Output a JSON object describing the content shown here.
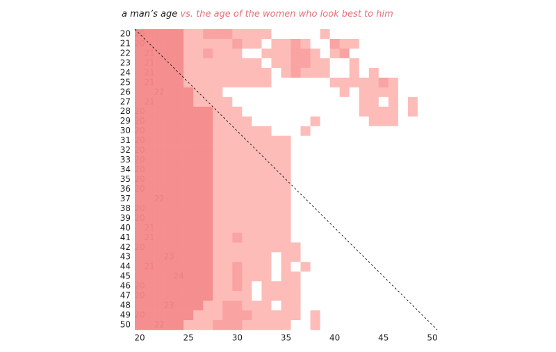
{
  "chart_data": {
    "type": "heatmap",
    "title": "a man’s age",
    "subtitle": "vs. the age of the women who look best to him",
    "title_color": "#222222",
    "subtitle_color": "#e8707a",
    "label_color": "#ee7f7f",
    "colors": [
      "#ffffff",
      "#fdbcb8",
      "#f9a3a3",
      "#f58f8f"
    ],
    "xlim": [
      19.5,
      50.5
    ],
    "ylim": [
      19.5,
      50.5
    ],
    "xticks": [
      20,
      25,
      30,
      35,
      40,
      45,
      50
    ],
    "x": [
      20,
      21,
      22,
      23,
      24,
      25,
      26,
      27,
      28,
      29,
      30,
      31,
      32,
      33,
      34,
      35,
      36,
      37,
      38,
      39,
      40,
      41,
      42,
      43,
      44,
      45,
      46,
      47,
      48,
      49,
      50
    ],
    "yticks": [
      20,
      21,
      22,
      23,
      24,
      25,
      26,
      27,
      28,
      29,
      30,
      31,
      32,
      33,
      34,
      35,
      36,
      37,
      38,
      39,
      40,
      41,
      42,
      43,
      44,
      45,
      46,
      47,
      48,
      49,
      50
    ],
    "values": [
      20,
      20,
      21,
      21,
      21,
      21,
      22,
      21,
      20,
      20,
      20,
      20,
      20,
      20,
      20,
      20,
      20,
      22,
      20,
      20,
      21,
      21,
      20,
      23,
      21,
      24,
      20,
      20,
      23,
      20,
      22
    ],
    "levels": [
      [
        3,
        3,
        3,
        3,
        3,
        1,
        1,
        2,
        2,
        2,
        1,
        1,
        1,
        1,
        0,
        0,
        0,
        0,
        0,
        1,
        0,
        0,
        0,
        0,
        0,
        0,
        0,
        0,
        0,
        0,
        0
      ],
      [
        3,
        3,
        3,
        3,
        3,
        1,
        1,
        1,
        1,
        1,
        2,
        1,
        1,
        0,
        1,
        1,
        2,
        1,
        0,
        0,
        2,
        1,
        1,
        0,
        0,
        0,
        0,
        0,
        0,
        0,
        0
      ],
      [
        3,
        3,
        3,
        3,
        3,
        1,
        1,
        2,
        1,
        1,
        1,
        0,
        0,
        1,
        1,
        1,
        2,
        2,
        1,
        0,
        1,
        2,
        0,
        0,
        0,
        0,
        0,
        0,
        0,
        0,
        0
      ],
      [
        3,
        3,
        3,
        3,
        3,
        1,
        1,
        1,
        1,
        1,
        1,
        1,
        1,
        0,
        1,
        1,
        2,
        2,
        1,
        1,
        0,
        0,
        1,
        0,
        0,
        0,
        0,
        0,
        0,
        0,
        0
      ],
      [
        3,
        3,
        3,
        3,
        3,
        1,
        1,
        1,
        1,
        1,
        1,
        1,
        1,
        1,
        0,
        1,
        2,
        1,
        1,
        1,
        0,
        0,
        1,
        0,
        1,
        0,
        0,
        0,
        0,
        0,
        0
      ],
      [
        3,
        3,
        3,
        3,
        3,
        1,
        1,
        1,
        1,
        1,
        1,
        1,
        1,
        1,
        0,
        0,
        0,
        0,
        0,
        0,
        1,
        1,
        1,
        1,
        1,
        2,
        1,
        0,
        0,
        0,
        0
      ],
      [
        3,
        3,
        3,
        3,
        3,
        3,
        1,
        1,
        1,
        0,
        0,
        0,
        0,
        0,
        0,
        0,
        0,
        0,
        0,
        0,
        0,
        1,
        0,
        1,
        1,
        1,
        1,
        0,
        0,
        0,
        0
      ],
      [
        3,
        3,
        3,
        3,
        3,
        3,
        1,
        1,
        1,
        1,
        0,
        0,
        0,
        0,
        0,
        0,
        0,
        0,
        0,
        0,
        0,
        0,
        0,
        1,
        1,
        0,
        1,
        0,
        1,
        0,
        0
      ],
      [
        3,
        3,
        3,
        3,
        3,
        3,
        3,
        3,
        1,
        1,
        1,
        0,
        0,
        0,
        0,
        0,
        0,
        0,
        0,
        0,
        0,
        0,
        0,
        1,
        1,
        1,
        1,
        0,
        1,
        0,
        0
      ],
      [
        3,
        3,
        3,
        3,
        3,
        3,
        3,
        3,
        1,
        1,
        1,
        1,
        0,
        0,
        0,
        0,
        0,
        0,
        1,
        0,
        0,
        0,
        0,
        0,
        1,
        1,
        1,
        0,
        0,
        0,
        0
      ],
      [
        3,
        3,
        3,
        3,
        3,
        3,
        3,
        3,
        1,
        1,
        1,
        1,
        1,
        1,
        0,
        0,
        0,
        1,
        0,
        0,
        0,
        0,
        0,
        0,
        0,
        0,
        0,
        0,
        0,
        0,
        0
      ],
      [
        3,
        3,
        3,
        3,
        3,
        3,
        3,
        3,
        1,
        1,
        1,
        1,
        1,
        1,
        1,
        1,
        0,
        0,
        0,
        0,
        0,
        0,
        0,
        0,
        0,
        0,
        0,
        0,
        0,
        0,
        0
      ],
      [
        3,
        3,
        3,
        3,
        3,
        3,
        3,
        3,
        1,
        1,
        1,
        1,
        1,
        1,
        1,
        1,
        0,
        0,
        0,
        0,
        0,
        0,
        0,
        0,
        0,
        0,
        0,
        0,
        0,
        0,
        0
      ],
      [
        3,
        3,
        3,
        3,
        3,
        3,
        3,
        3,
        1,
        1,
        1,
        1,
        1,
        1,
        1,
        1,
        0,
        0,
        0,
        0,
        0,
        0,
        0,
        0,
        0,
        0,
        0,
        0,
        0,
        0,
        0
      ],
      [
        3,
        3,
        3,
        3,
        3,
        3,
        3,
        3,
        1,
        1,
        1,
        1,
        1,
        1,
        1,
        1,
        0,
        0,
        0,
        0,
        0,
        0,
        0,
        0,
        0,
        0,
        0,
        0,
        0,
        0,
        0
      ],
      [
        3,
        3,
        3,
        3,
        3,
        3,
        3,
        3,
        1,
        1,
        1,
        1,
        1,
        1,
        1,
        1,
        0,
        0,
        0,
        0,
        0,
        0,
        0,
        0,
        0,
        0,
        0,
        0,
        0,
        0,
        0
      ],
      [
        3,
        3,
        3,
        3,
        3,
        3,
        3,
        3,
        1,
        1,
        1,
        1,
        1,
        1,
        1,
        1,
        0,
        0,
        0,
        0,
        0,
        0,
        0,
        0,
        0,
        0,
        0,
        0,
        0,
        0,
        0
      ],
      [
        3,
        3,
        3,
        3,
        3,
        3,
        3,
        3,
        1,
        1,
        1,
        1,
        1,
        1,
        1,
        1,
        0,
        0,
        0,
        0,
        0,
        0,
        0,
        0,
        0,
        0,
        0,
        0,
        0,
        0,
        0
      ],
      [
        3,
        3,
        3,
        3,
        3,
        3,
        3,
        3,
        1,
        1,
        1,
        1,
        1,
        1,
        1,
        1,
        0,
        0,
        0,
        0,
        0,
        0,
        0,
        0,
        0,
        0,
        0,
        0,
        0,
        0,
        0
      ],
      [
        3,
        3,
        3,
        3,
        3,
        3,
        3,
        3,
        1,
        1,
        1,
        1,
        1,
        1,
        1,
        1,
        0,
        0,
        0,
        0,
        0,
        0,
        0,
        0,
        0,
        0,
        0,
        0,
        0,
        0,
        0
      ],
      [
        3,
        3,
        3,
        3,
        3,
        3,
        3,
        3,
        1,
        1,
        1,
        1,
        1,
        1,
        1,
        1,
        0,
        0,
        0,
        0,
        0,
        0,
        0,
        0,
        0,
        0,
        0,
        0,
        0,
        0,
        0
      ],
      [
        3,
        3,
        3,
        3,
        3,
        3,
        3,
        3,
        1,
        1,
        2,
        1,
        1,
        1,
        1,
        1,
        0,
        0,
        0,
        0,
        0,
        0,
        0,
        0,
        0,
        0,
        0,
        0,
        0,
        0,
        0
      ],
      [
        3,
        3,
        3,
        3,
        3,
        3,
        3,
        3,
        1,
        1,
        1,
        1,
        1,
        1,
        1,
        1,
        1,
        0,
        0,
        0,
        0,
        0,
        0,
        0,
        0,
        0,
        0,
        0,
        0,
        0,
        0
      ],
      [
        3,
        3,
        3,
        3,
        3,
        3,
        3,
        3,
        1,
        1,
        1,
        1,
        1,
        1,
        0,
        1,
        1,
        0,
        0,
        0,
        0,
        0,
        0,
        0,
        0,
        0,
        0,
        0,
        0,
        0,
        0
      ],
      [
        3,
        3,
        3,
        3,
        3,
        3,
        3,
        3,
        1,
        1,
        2,
        1,
        1,
        1,
        0,
        1,
        0,
        1,
        0,
        0,
        0,
        0,
        0,
        0,
        0,
        0,
        0,
        0,
        0,
        0,
        0
      ],
      [
        3,
        3,
        3,
        3,
        3,
        3,
        3,
        3,
        1,
        1,
        2,
        1,
        1,
        1,
        0,
        1,
        1,
        0,
        0,
        0,
        0,
        0,
        0,
        0,
        0,
        0,
        0,
        0,
        0,
        0,
        0
      ],
      [
        3,
        3,
        3,
        3,
        3,
        3,
        3,
        3,
        1,
        1,
        2,
        1,
        0,
        1,
        1,
        1,
        1,
        0,
        0,
        0,
        0,
        0,
        0,
        0,
        0,
        0,
        0,
        0,
        0,
        0,
        0
      ],
      [
        3,
        3,
        3,
        3,
        3,
        3,
        3,
        3,
        1,
        1,
        1,
        1,
        0,
        1,
        1,
        1,
        1,
        0,
        0,
        0,
        0,
        0,
        0,
        0,
        0,
        0,
        0,
        0,
        0,
        0,
        0
      ],
      [
        3,
        3,
        3,
        3,
        3,
        3,
        3,
        1,
        1,
        2,
        2,
        1,
        1,
        1,
        0,
        1,
        1,
        0,
        0,
        0,
        0,
        0,
        0,
        0,
        0,
        0,
        0,
        0,
        0,
        0,
        0
      ],
      [
        3,
        3,
        3,
        3,
        3,
        3,
        1,
        1,
        1,
        2,
        2,
        2,
        1,
        1,
        1,
        1,
        1,
        0,
        1,
        0,
        0,
        0,
        0,
        0,
        0,
        0,
        0,
        0,
        0,
        0,
        0
      ],
      [
        3,
        3,
        3,
        3,
        3,
        1,
        1,
        1,
        2,
        2,
        2,
        1,
        1,
        1,
        1,
        1,
        0,
        0,
        1,
        0,
        0,
        0,
        0,
        0,
        0,
        0,
        0,
        0,
        0,
        0,
        0
      ]
    ]
  }
}
